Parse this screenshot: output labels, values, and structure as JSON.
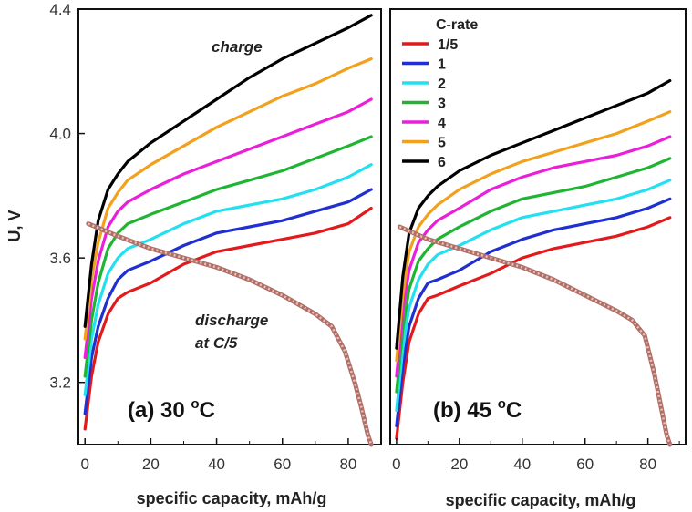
{
  "chart_data": [
    {
      "type": "line",
      "panel_label": "(a) 30 ",
      "panel_label_unit": "C",
      "panel_label_sup": "o",
      "xlabel": "specific capacity, mAh/g",
      "ylabel": "U, V",
      "xlim": [
        -2,
        90
      ],
      "ylim": [
        3.0,
        4.4
      ],
      "x_ticks": [
        0,
        20,
        40,
        60,
        80
      ],
      "y_ticks": [
        3.2,
        3.6,
        4.0,
        4.4
      ],
      "annotations": [
        "charge",
        "discharge",
        "at C/5"
      ],
      "series": [
        {
          "name": "1/5",
          "color": "#e31a1c",
          "x": [
            0,
            2,
            4,
            7,
            10,
            13,
            20,
            30,
            40,
            50,
            60,
            70,
            80,
            87
          ],
          "y": [
            3.05,
            3.22,
            3.33,
            3.42,
            3.47,
            3.49,
            3.52,
            3.58,
            3.62,
            3.64,
            3.66,
            3.68,
            3.71,
            3.76
          ]
        },
        {
          "name": "1",
          "color": "#1f2fd0",
          "x": [
            0,
            2,
            4,
            7,
            10,
            13,
            20,
            30,
            40,
            50,
            60,
            70,
            80,
            87
          ],
          "y": [
            3.1,
            3.28,
            3.38,
            3.47,
            3.53,
            3.56,
            3.59,
            3.64,
            3.68,
            3.7,
            3.72,
            3.75,
            3.78,
            3.82
          ]
        },
        {
          "name": "2",
          "color": "#22e0f0",
          "x": [
            0,
            2,
            4,
            7,
            10,
            13,
            20,
            30,
            40,
            50,
            60,
            70,
            80,
            87
          ],
          "y": [
            3.16,
            3.34,
            3.45,
            3.55,
            3.6,
            3.63,
            3.66,
            3.71,
            3.75,
            3.77,
            3.79,
            3.82,
            3.86,
            3.9
          ]
        },
        {
          "name": "3",
          "color": "#1fb533",
          "x": [
            0,
            2,
            4,
            7,
            10,
            13,
            20,
            30,
            40,
            50,
            60,
            70,
            80,
            87
          ],
          "y": [
            3.22,
            3.4,
            3.52,
            3.63,
            3.68,
            3.71,
            3.74,
            3.78,
            3.82,
            3.85,
            3.88,
            3.92,
            3.96,
            3.99
          ]
        },
        {
          "name": "4",
          "color": "#ea1fd9",
          "x": [
            0,
            2,
            4,
            7,
            10,
            13,
            20,
            30,
            40,
            50,
            60,
            70,
            80,
            87
          ],
          "y": [
            3.28,
            3.47,
            3.59,
            3.7,
            3.75,
            3.78,
            3.82,
            3.87,
            3.91,
            3.95,
            3.99,
            4.03,
            4.07,
            4.11
          ]
        },
        {
          "name": "5",
          "color": "#f2a11f",
          "x": [
            0,
            2,
            4,
            7,
            10,
            13,
            20,
            30,
            40,
            50,
            60,
            70,
            80,
            87
          ],
          "y": [
            3.34,
            3.53,
            3.65,
            3.76,
            3.81,
            3.85,
            3.9,
            3.96,
            4.02,
            4.07,
            4.12,
            4.16,
            4.21,
            4.24
          ]
        },
        {
          "name": "6",
          "color": "#000000",
          "x": [
            0,
            2,
            4,
            7,
            10,
            13,
            20,
            30,
            40,
            50,
            60,
            70,
            80,
            87
          ],
          "y": [
            3.38,
            3.58,
            3.72,
            3.82,
            3.87,
            3.91,
            3.97,
            4.04,
            4.11,
            4.18,
            4.24,
            4.29,
            4.34,
            4.38
          ]
        },
        {
          "name": "discharge at C/5",
          "color": "#b06e6e",
          "dashed": true,
          "x": [
            1,
            10,
            20,
            30,
            40,
            50,
            60,
            70,
            75,
            79,
            82,
            84,
            86,
            87
          ],
          "y": [
            3.71,
            3.67,
            3.63,
            3.6,
            3.57,
            3.53,
            3.48,
            3.42,
            3.38,
            3.3,
            3.2,
            3.12,
            3.03,
            3.0
          ]
        }
      ]
    },
    {
      "type": "line",
      "panel_label": "(b) 45 ",
      "panel_label_unit": "C",
      "panel_label_sup": "o",
      "xlabel": "specific capacity, mAh/g",
      "ylabel": "",
      "xlim": [
        -2,
        92
      ],
      "ylim": [
        3.0,
        4.4
      ],
      "x_ticks": [
        0,
        20,
        40,
        60,
        80
      ],
      "legend_title": "C-rate",
      "legend_position": "top-left",
      "series": [
        {
          "name": "1/5",
          "color": "#e31a1c",
          "x": [
            0,
            2,
            4,
            7,
            10,
            13,
            20,
            30,
            40,
            50,
            60,
            70,
            80,
            87
          ],
          "y": [
            3.02,
            3.2,
            3.33,
            3.42,
            3.47,
            3.48,
            3.51,
            3.55,
            3.6,
            3.63,
            3.65,
            3.67,
            3.7,
            3.73
          ]
        },
        {
          "name": "1",
          "color": "#1f2fd0",
          "x": [
            0,
            2,
            4,
            7,
            10,
            13,
            20,
            30,
            40,
            50,
            60,
            70,
            80,
            87
          ],
          "y": [
            3.06,
            3.25,
            3.38,
            3.47,
            3.52,
            3.53,
            3.56,
            3.62,
            3.66,
            3.69,
            3.71,
            3.73,
            3.76,
            3.79
          ]
        },
        {
          "name": "2",
          "color": "#22e0f0",
          "x": [
            0,
            2,
            4,
            7,
            10,
            13,
            20,
            30,
            40,
            50,
            60,
            70,
            80,
            87
          ],
          "y": [
            3.11,
            3.31,
            3.44,
            3.53,
            3.58,
            3.61,
            3.64,
            3.69,
            3.73,
            3.75,
            3.77,
            3.79,
            3.82,
            3.85
          ]
        },
        {
          "name": "3",
          "color": "#1fb533",
          "x": [
            0,
            2,
            4,
            7,
            10,
            13,
            20,
            30,
            40,
            50,
            60,
            70,
            80,
            87
          ],
          "y": [
            3.17,
            3.37,
            3.5,
            3.59,
            3.63,
            3.66,
            3.7,
            3.75,
            3.79,
            3.81,
            3.83,
            3.86,
            3.89,
            3.92
          ]
        },
        {
          "name": "4",
          "color": "#ea1fd9",
          "x": [
            0,
            2,
            4,
            7,
            10,
            13,
            20,
            30,
            40,
            50,
            60,
            70,
            80,
            87
          ],
          "y": [
            3.22,
            3.43,
            3.56,
            3.65,
            3.69,
            3.72,
            3.76,
            3.82,
            3.86,
            3.89,
            3.91,
            3.93,
            3.96,
            3.99
          ]
        },
        {
          "name": "5",
          "color": "#f2a11f",
          "x": [
            0,
            2,
            4,
            7,
            10,
            13,
            20,
            30,
            40,
            50,
            60,
            70,
            80,
            87
          ],
          "y": [
            3.27,
            3.48,
            3.62,
            3.7,
            3.74,
            3.77,
            3.82,
            3.87,
            3.91,
            3.94,
            3.97,
            4.0,
            4.04,
            4.07
          ]
        },
        {
          "name": "6",
          "color": "#000000",
          "x": [
            0,
            2,
            4,
            7,
            10,
            13,
            20,
            30,
            40,
            50,
            60,
            70,
            80,
            87
          ],
          "y": [
            3.31,
            3.54,
            3.68,
            3.76,
            3.8,
            3.83,
            3.88,
            3.93,
            3.97,
            4.01,
            4.05,
            4.09,
            4.13,
            4.17
          ]
        },
        {
          "name": "discharge at C/5",
          "color": "#b06e6e",
          "dashed": true,
          "x": [
            1,
            10,
            20,
            30,
            40,
            50,
            60,
            70,
            75,
            79,
            82,
            84,
            86,
            87
          ],
          "y": [
            3.7,
            3.66,
            3.63,
            3.6,
            3.57,
            3.53,
            3.48,
            3.43,
            3.4,
            3.35,
            3.23,
            3.13,
            3.03,
            3.0
          ]
        }
      ]
    }
  ]
}
